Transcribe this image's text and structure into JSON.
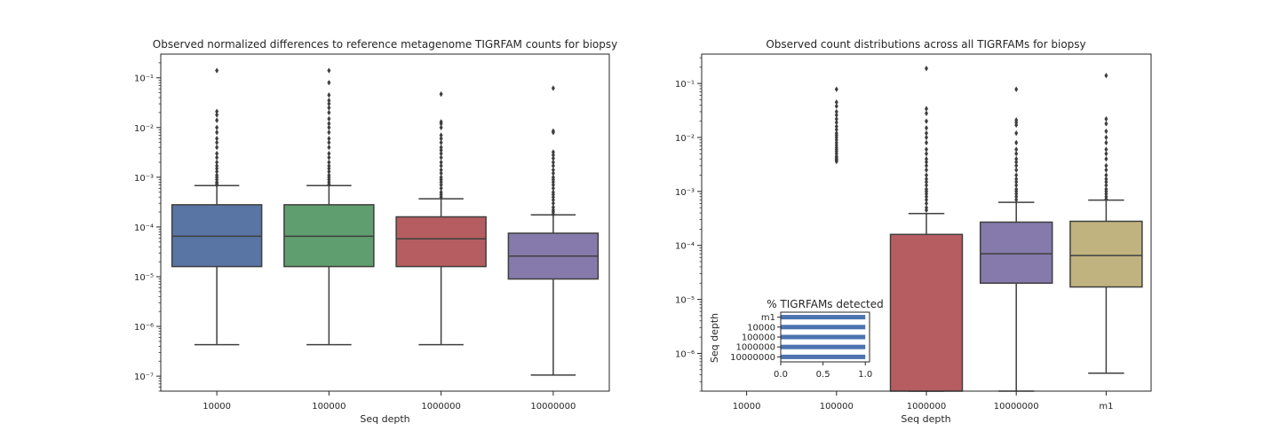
{
  "chart_data": [
    {
      "type": "box",
      "title": "Observed normalized differences to reference metagenome TIGRFAM counts for biopsy",
      "xlabel": "Seq depth",
      "ylabel": "",
      "yscale": "log",
      "ylim": [
        5e-08,
        0.3
      ],
      "grid": false,
      "categories": [
        "10000",
        "100000",
        "1000000",
        "10000000"
      ],
      "colors": [
        "#5875a4",
        "#5f9e6e",
        "#b55d60",
        "#857aab"
      ],
      "boxes": [
        {
          "category": "10000",
          "q1": 1.6e-05,
          "median": 6.5e-05,
          "q3": 0.00028,
          "whisker_low": 4.3e-07,
          "whisker_high": 0.00068,
          "outliers": [
            0.14,
            0.021,
            0.018,
            0.014,
            0.01,
            0.008,
            0.006,
            0.005,
            0.004,
            0.003,
            0.0025,
            0.002,
            0.0017,
            0.0015,
            0.0013,
            0.0011,
            0.001,
            0.0009,
            0.0008,
            0.00075,
            0.0007
          ]
        },
        {
          "category": "100000",
          "q1": 1.6e-05,
          "median": 6.5e-05,
          "q3": 0.00028,
          "whisker_low": 4.3e-07,
          "whisker_high": 0.00068,
          "outliers": [
            0.14,
            0.08,
            0.045,
            0.035,
            0.03,
            0.025,
            0.02,
            0.015,
            0.012,
            0.01,
            0.008,
            0.006,
            0.005,
            0.004,
            0.003,
            0.0025,
            0.002,
            0.0017,
            0.0015,
            0.0013,
            0.0011,
            0.001,
            0.0009,
            0.0008,
            0.00072
          ]
        },
        {
          "category": "1000000",
          "q1": 1.6e-05,
          "median": 5.8e-05,
          "q3": 0.00016,
          "whisker_low": 4.3e-07,
          "whisker_high": 0.00037,
          "outliers": [
            0.047,
            0.013,
            0.012,
            0.01,
            0.007,
            0.006,
            0.005,
            0.004,
            0.0035,
            0.003,
            0.0025,
            0.002,
            0.0017,
            0.0014,
            0.0012,
            0.001,
            0.0009,
            0.0008,
            0.0007,
            0.0006,
            0.0005,
            0.00045,
            0.0004
          ]
        },
        {
          "category": "10000000",
          "q1": 9e-06,
          "median": 2.6e-05,
          "q3": 7.5e-05,
          "whisker_low": 1.05e-07,
          "whisker_high": 0.000175,
          "outliers": [
            0.062,
            0.0085,
            0.008,
            0.0032,
            0.0028,
            0.0024,
            0.002,
            0.0017,
            0.0014,
            0.0012,
            0.001,
            0.0009,
            0.0008,
            0.0007,
            0.0006,
            0.0005,
            0.00045,
            0.0004,
            0.00035,
            0.0003,
            0.00025,
            0.00022,
            0.0002,
            0.00018
          ]
        }
      ]
    },
    {
      "type": "box",
      "title": "Observed count distributions across all TIGRFAMs for biopsy",
      "xlabel": "Seq depth",
      "ylabel": "",
      "yscale": "log",
      "ylim": [
        2e-07,
        0.35
      ],
      "grid": false,
      "categories": [
        "10000",
        "100000",
        "1000000",
        "10000000",
        "m1"
      ],
      "colors": [
        "#5875a4",
        "#5f9e6e",
        "#b55d60",
        "#857aab",
        "#c1b37f"
      ],
      "boxes": [
        {
          "category": "10000",
          "empty": true
        },
        {
          "category": "100000",
          "outliers_only": true,
          "outliers": [
            0.078,
            0.045,
            0.038,
            0.03,
            0.026,
            0.022,
            0.019,
            0.016,
            0.014,
            0.012,
            0.011,
            0.01,
            0.009,
            0.008,
            0.0072,
            0.0065,
            0.006,
            0.0055,
            0.005,
            0.0045,
            0.0042,
            0.004,
            0.0038,
            0.0036
          ]
        },
        {
          "category": "1000000",
          "q1": 2e-07,
          "median": 2e-07,
          "q3": 0.00016,
          "whisker_low": 2e-07,
          "whisker_high": 0.00039,
          "outliers": [
            0.19,
            0.034,
            0.028,
            0.02,
            0.015,
            0.012,
            0.01,
            0.008,
            0.006,
            0.005,
            0.004,
            0.0035,
            0.003,
            0.0025,
            0.002,
            0.0017,
            0.0015,
            0.0013,
            0.0011,
            0.001,
            0.0009,
            0.0008,
            0.0007,
            0.0006,
            0.0005,
            0.00045
          ]
        },
        {
          "category": "10000000",
          "q1": 2e-05,
          "median": 7e-05,
          "q3": 0.00027,
          "whisker_low": 2e-07,
          "whisker_high": 0.00063,
          "outliers": [
            0.078,
            0.021,
            0.019,
            0.017,
            0.012,
            0.008,
            0.006,
            0.005,
            0.004,
            0.0035,
            0.003,
            0.0025,
            0.002,
            0.0017,
            0.0015,
            0.0013,
            0.0011,
            0.001,
            0.0009,
            0.0008,
            0.0007
          ]
        },
        {
          "category": "m1",
          "q1": 1.7e-05,
          "median": 6.5e-05,
          "q3": 0.00028,
          "whisker_low": 4.3e-07,
          "whisker_high": 0.00069,
          "outliers": [
            0.14,
            0.022,
            0.018,
            0.013,
            0.01,
            0.008,
            0.006,
            0.005,
            0.004,
            0.003,
            0.0025,
            0.002,
            0.0017,
            0.0015,
            0.0013,
            0.0011,
            0.001,
            0.0009,
            0.0008,
            0.00072
          ]
        }
      ]
    },
    {
      "type": "bar",
      "orientation": "horizontal",
      "title": "% TIGRFAMs detected",
      "xlabel": "",
      "ylabel": "Seq depth",
      "xlim": [
        0.0,
        1.05
      ],
      "xticks": [
        "0.0",
        "0.5",
        "1.0"
      ],
      "categories": [
        "m1",
        "10000",
        "100000",
        "1000000",
        "10000000"
      ],
      "values": [
        1.0,
        1.0,
        1.0,
        1.0,
        1.0
      ],
      "color": "#4c72b0"
    }
  ]
}
